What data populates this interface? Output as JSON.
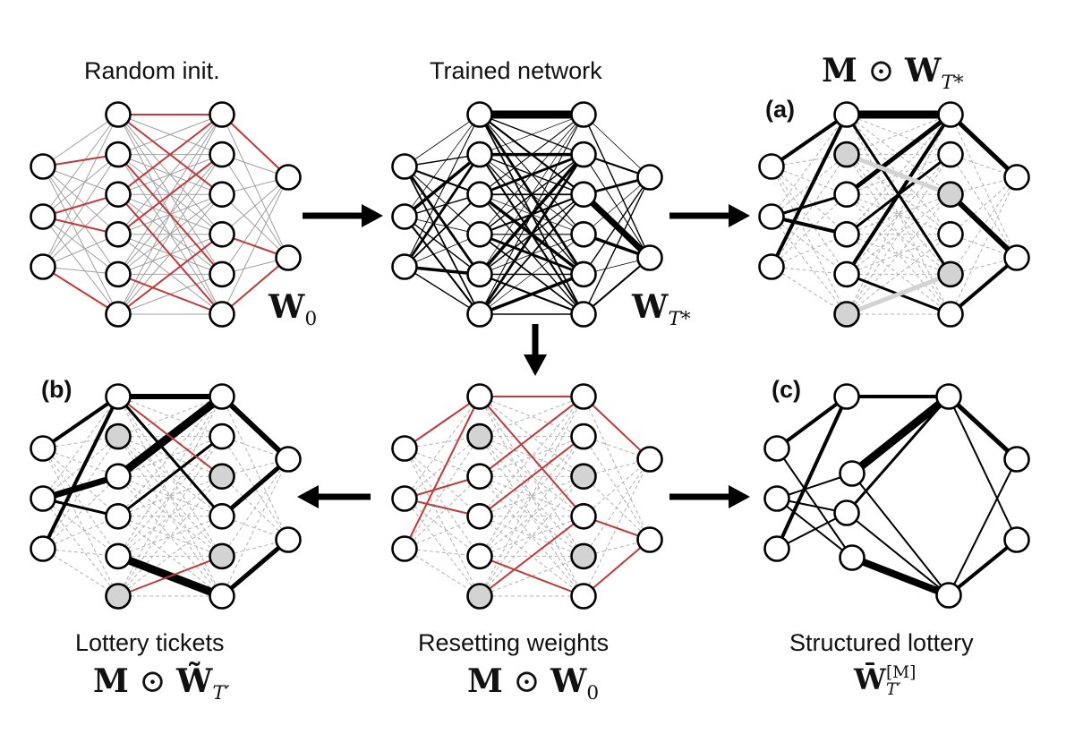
{
  "titles": {
    "random_init": "Random init.",
    "trained": "Trained network",
    "lottery": "Lottery tickets",
    "resetting": "Resetting weights",
    "structured": "Structured lottery"
  },
  "panel_tags": {
    "a": "(a)",
    "b": "(b)",
    "c": "(c)"
  },
  "formulas": {
    "w0": {
      "symbol": "W",
      "sub": "0"
    },
    "wT": {
      "symbol": "W",
      "sub": "T*"
    },
    "mask_wT": {
      "mask": "M",
      "op": "⊙",
      "symbol": "W",
      "sub": "T*"
    },
    "mask_wtilde": {
      "mask": "M",
      "op": "⊙",
      "symbol": "W̃",
      "sub": "T′"
    },
    "mask_w0": {
      "mask": "M",
      "op": "⊙",
      "symbol": "W",
      "sub": "0"
    },
    "w_bar": {
      "symbol": "W̄",
      "sub": "T′",
      "sup": "[M]"
    }
  },
  "colors": {
    "node_fill": "#ffffff",
    "pruned_node_fill": "#d3d3d3",
    "edge_black": "#000000",
    "edge_grey": "#a0a0a0",
    "edge_red": "#c0393b",
    "edge_dashed": "#b0b0b0",
    "arrow": "#000000"
  }
}
